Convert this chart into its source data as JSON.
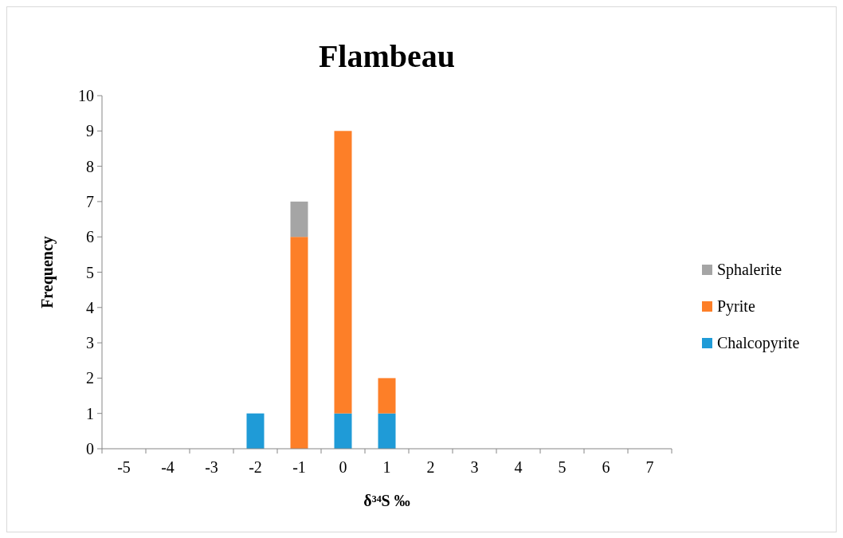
{
  "chart_data": {
    "type": "bar",
    "title": "Flambeau",
    "xlabel": "δ³⁴S ‰",
    "ylabel": "Frequency",
    "categories": [
      "-5",
      "-4",
      "-3",
      "-2",
      "-1",
      "0",
      "1",
      "2",
      "3",
      "4",
      "5",
      "6",
      "7"
    ],
    "stacked": true,
    "ylim": [
      0,
      10
    ],
    "yticks": [
      0,
      1,
      2,
      3,
      4,
      5,
      6,
      7,
      8,
      9,
      10
    ],
    "legend": "right",
    "series": [
      {
        "name": "Chalcopyrite",
        "color": "#1f9bd7",
        "values": [
          0,
          0,
          0,
          1,
          0,
          1,
          1,
          0,
          0,
          0,
          0,
          0,
          0
        ]
      },
      {
        "name": "Pyrite",
        "color": "#fd7f28",
        "values": [
          0,
          0,
          0,
          0,
          6,
          8,
          1,
          0,
          0,
          0,
          0,
          0,
          0
        ]
      },
      {
        "name": "Sphalerite",
        "color": "#a5a5a5",
        "values": [
          0,
          0,
          0,
          0,
          1,
          0,
          0,
          0,
          0,
          0,
          0,
          0,
          0
        ]
      }
    ]
  }
}
